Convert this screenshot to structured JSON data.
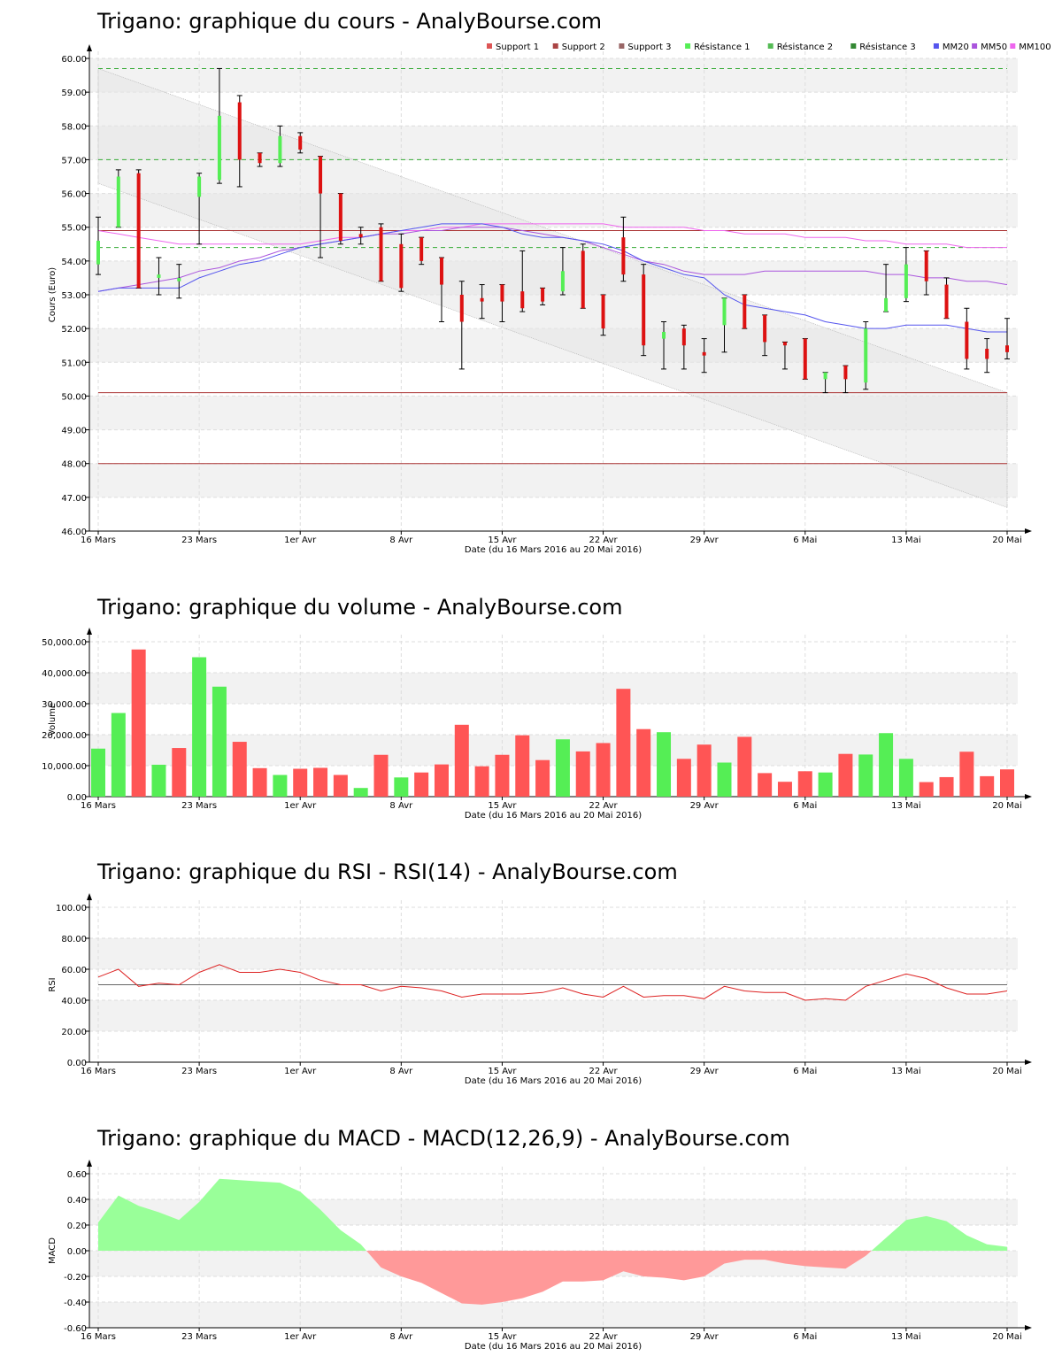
{
  "colors": {
    "bull": "#55ee55",
    "bear": "#dd1111",
    "vol_up": "#55ee55",
    "vol_down": "#ff5555",
    "mm20": "#5555ee",
    "mm50": "#aa55dd",
    "mm100": "#ee66ee",
    "support": "#aa3333",
    "resistance": "#33aa33",
    "rsi": "#dd2222",
    "macd_pos": "#99ff99",
    "macd_neg": "#ff9999",
    "band_fill": "#f2f2f2",
    "channel_fill": "#e6e6e6"
  },
  "x_ticks": [
    "16 Mars",
    "23 Mars",
    "1er Avr",
    "8 Avr",
    "15 Avr",
    "22 Avr",
    "29 Avr",
    "6 Mai",
    "13 Mai",
    "20 Mai"
  ],
  "x_axis_label": "Date (du 16 Mars 2016 au 20 Mai 2016)",
  "chart_data": [
    {
      "type": "candlestick",
      "title": "Trigano: graphique du cours - AnalyBourse.com",
      "ylabel": "Cours (Euro)",
      "xlabel": "Date (du 16 Mars 2016 au 20 Mai 2016)",
      "ylim": [
        46,
        60
      ],
      "y_ticks": [
        "46.00",
        "47.00",
        "48.00",
        "49.00",
        "50.00",
        "51.00",
        "52.00",
        "53.00",
        "54.00",
        "55.00",
        "56.00",
        "57.00",
        "58.00",
        "59.00",
        "60.00"
      ],
      "legend": [
        "Support 1",
        "Support 2",
        "Support 3",
        "Résistance 1",
        "Résistance 2",
        "Résistance 3",
        "MM20",
        "MM50",
        "MM100"
      ],
      "legend_colors": [
        "#dd5555",
        "#aa4444",
        "#996666",
        "#55ee55",
        "#55bb55",
        "#338833",
        "#5555ee",
        "#aa55dd",
        "#ee66ee"
      ],
      "legend_position": "top-right",
      "supports": [
        50.1,
        48.0,
        54.9
      ],
      "resistances": [
        54.4,
        57.0,
        59.7
      ],
      "channel": {
        "start": [
          59.7,
          56.3
        ],
        "end": [
          50.1,
          46.7
        ]
      },
      "candles": [
        {
          "o": 53.9,
          "c": 54.6,
          "h": 55.3,
          "l": 53.6
        },
        {
          "o": 55.0,
          "c": 56.5,
          "h": 56.7,
          "l": 55.0
        },
        {
          "o": 56.6,
          "c": 53.2,
          "h": 56.7,
          "l": 53.2
        },
        {
          "o": 53.5,
          "c": 53.6,
          "h": 54.1,
          "l": 53.0
        },
        {
          "o": 53.4,
          "c": 53.5,
          "h": 53.9,
          "l": 52.9
        },
        {
          "o": 55.9,
          "c": 56.5,
          "h": 56.6,
          "l": 54.5
        },
        {
          "o": 56.4,
          "c": 58.3,
          "h": 59.7,
          "l": 56.3
        },
        {
          "o": 58.7,
          "c": 57.0,
          "h": 58.9,
          "l": 56.2
        },
        {
          "o": 57.2,
          "c": 56.9,
          "h": 57.2,
          "l": 56.8
        },
        {
          "o": 56.9,
          "c": 57.7,
          "h": 58.0,
          "l": 56.8
        },
        {
          "o": 57.7,
          "c": 57.3,
          "h": 57.8,
          "l": 57.2
        },
        {
          "o": 57.1,
          "c": 56.0,
          "h": 57.1,
          "l": 54.1
        },
        {
          "o": 56.0,
          "c": 54.6,
          "h": 56.0,
          "l": 54.5
        },
        {
          "o": 54.8,
          "c": 54.7,
          "h": 55.0,
          "l": 54.5
        },
        {
          "o": 55.0,
          "c": 53.4,
          "h": 55.1,
          "l": 53.4
        },
        {
          "o": 54.5,
          "c": 53.2,
          "h": 54.8,
          "l": 53.1
        },
        {
          "o": 54.7,
          "c": 54.0,
          "h": 54.7,
          "l": 53.9
        },
        {
          "o": 54.1,
          "c": 53.3,
          "h": 54.1,
          "l": 52.2
        },
        {
          "o": 53.0,
          "c": 52.2,
          "h": 53.4,
          "l": 50.8
        },
        {
          "o": 52.9,
          "c": 52.8,
          "h": 53.3,
          "l": 52.3
        },
        {
          "o": 53.3,
          "c": 52.8,
          "h": 53.3,
          "l": 52.2
        },
        {
          "o": 53.1,
          "c": 52.6,
          "h": 54.3,
          "l": 52.5
        },
        {
          "o": 53.2,
          "c": 52.8,
          "h": 53.2,
          "l": 52.7
        },
        {
          "o": 53.1,
          "c": 53.7,
          "h": 54.4,
          "l": 53.0
        },
        {
          "o": 54.3,
          "c": 52.6,
          "h": 54.5,
          "l": 52.6
        },
        {
          "o": 53.0,
          "c": 52.0,
          "h": 53.0,
          "l": 51.8
        },
        {
          "o": 54.7,
          "c": 53.6,
          "h": 55.3,
          "l": 53.4
        },
        {
          "o": 53.6,
          "c": 51.5,
          "h": 53.9,
          "l": 51.2
        },
        {
          "o": 51.7,
          "c": 51.9,
          "h": 52.2,
          "l": 50.8
        },
        {
          "o": 52.0,
          "c": 51.5,
          "h": 52.1,
          "l": 50.8
        },
        {
          "o": 51.3,
          "c": 51.2,
          "h": 51.7,
          "l": 50.7
        },
        {
          "o": 52.1,
          "c": 52.9,
          "h": 52.9,
          "l": 51.3
        },
        {
          "o": 53.0,
          "c": 52.0,
          "h": 53.0,
          "l": 52.0
        },
        {
          "o": 52.4,
          "c": 51.6,
          "h": 52.4,
          "l": 51.2
        },
        {
          "o": 51.6,
          "c": 51.5,
          "h": 51.6,
          "l": 50.8
        },
        {
          "o": 51.7,
          "c": 50.5,
          "h": 51.7,
          "l": 50.5
        },
        {
          "o": 50.5,
          "c": 50.7,
          "h": 50.7,
          "l": 50.1
        },
        {
          "o": 50.9,
          "c": 50.5,
          "h": 50.9,
          "l": 50.1
        },
        {
          "o": 50.4,
          "c": 52.0,
          "h": 52.2,
          "l": 50.2
        },
        {
          "o": 52.5,
          "c": 52.9,
          "h": 53.9,
          "l": 52.5
        },
        {
          "o": 52.9,
          "c": 53.9,
          "h": 54.4,
          "l": 52.8
        },
        {
          "o": 54.3,
          "c": 53.4,
          "h": 54.3,
          "l": 53.0
        },
        {
          "o": 53.3,
          "c": 52.3,
          "h": 53.5,
          "l": 52.3
        },
        {
          "o": 52.2,
          "c": 51.1,
          "h": 52.6,
          "l": 50.8
        },
        {
          "o": 51.4,
          "c": 51.1,
          "h": 51.7,
          "l": 50.7
        },
        {
          "o": 51.5,
          "c": 51.3,
          "h": 52.3,
          "l": 51.1
        }
      ],
      "mm20": [
        53.1,
        53.2,
        53.2,
        53.2,
        53.2,
        53.5,
        53.7,
        53.9,
        54.0,
        54.2,
        54.4,
        54.5,
        54.6,
        54.7,
        54.8,
        54.9,
        55.0,
        55.1,
        55.1,
        55.1,
        55.0,
        54.8,
        54.7,
        54.7,
        54.6,
        54.5,
        54.3,
        54.0,
        53.8,
        53.6,
        53.5,
        53.0,
        52.7,
        52.6,
        52.5,
        52.4,
        52.2,
        52.1,
        52.0,
        52.0,
        52.1,
        52.1,
        52.1,
        52.0,
        51.9,
        51.9
      ],
      "mm50": [
        53.1,
        53.2,
        53.3,
        53.4,
        53.5,
        53.7,
        53.8,
        54.0,
        54.1,
        54.3,
        54.4,
        54.5,
        54.6,
        54.7,
        54.8,
        54.8,
        54.9,
        54.9,
        55.0,
        55.0,
        55.0,
        54.9,
        54.8,
        54.7,
        54.6,
        54.4,
        54.2,
        54.0,
        53.9,
        53.7,
        53.6,
        53.6,
        53.6,
        53.7,
        53.7,
        53.7,
        53.7,
        53.7,
        53.7,
        53.6,
        53.6,
        53.5,
        53.5,
        53.4,
        53.4,
        53.3
      ],
      "mm100": [
        54.9,
        54.8,
        54.7,
        54.6,
        54.5,
        54.5,
        54.5,
        54.5,
        54.5,
        54.5,
        54.5,
        54.6,
        54.7,
        54.7,
        54.8,
        54.9,
        54.9,
        55.0,
        55.0,
        55.1,
        55.1,
        55.1,
        55.1,
        55.1,
        55.1,
        55.1,
        55.0,
        55.0,
        55.0,
        55.0,
        54.9,
        54.9,
        54.8,
        54.8,
        54.8,
        54.7,
        54.7,
        54.7,
        54.6,
        54.6,
        54.5,
        54.5,
        54.5,
        54.4,
        54.4,
        54.4
      ]
    },
    {
      "type": "bar",
      "title": "Trigano: graphique du volume - AnalyBourse.com",
      "ylabel": "Volume",
      "xlabel": "Date (du 16 Mars 2016 au 20 Mai 2016)",
      "ylim": [
        0,
        50000
      ],
      "y_ticks": [
        "0.00",
        "10,000.00",
        "20,000.00",
        "30,000.00",
        "40,000.00",
        "50,000.00"
      ],
      "values": [
        15500,
        27000,
        47500,
        10300,
        15700,
        45000,
        35500,
        17700,
        9200,
        7000,
        9000,
        9300,
        7000,
        2800,
        13500,
        6200,
        7800,
        10400,
        23200,
        9800,
        13500,
        19800,
        11800,
        18500,
        14600,
        17300,
        34800,
        21800,
        20800,
        12200,
        16800,
        11000,
        19300,
        7600,
        4800,
        8200,
        7800,
        13800,
        13600,
        20500,
        12200,
        4700,
        6300,
        14500,
        6600,
        8800
      ],
      "directions": [
        1,
        1,
        0,
        1,
        0,
        1,
        1,
        0,
        0,
        1,
        0,
        0,
        0,
        1,
        0,
        1,
        0,
        0,
        0,
        0,
        0,
        0,
        0,
        1,
        0,
        0,
        0,
        0,
        1,
        0,
        0,
        1,
        0,
        0,
        0,
        0,
        1,
        0,
        1,
        1,
        1,
        0,
        0,
        0,
        0,
        0
      ]
    },
    {
      "type": "line",
      "title": "Trigano: graphique du RSI - RSI(14) - AnalyBourse.com",
      "ylabel": "RSI",
      "xlabel": "Date (du 16 Mars 2016 au 20 Mai 2016)",
      "ylim": [
        0,
        100
      ],
      "y_ticks": [
        "0.00",
        "20.00",
        "40.00",
        "60.00",
        "80.00",
        "100.00"
      ],
      "reference": 50,
      "values": [
        55,
        60,
        49,
        51,
        50,
        58,
        63,
        58,
        58,
        60,
        58,
        53,
        50,
        50,
        46,
        49,
        48,
        46,
        42,
        44,
        44,
        44,
        45,
        48,
        44,
        42,
        49,
        42,
        43,
        43,
        41,
        49,
        46,
        45,
        45,
        40,
        41,
        40,
        49,
        53,
        57,
        54,
        48,
        44,
        44,
        46
      ]
    },
    {
      "type": "area",
      "title": "Trigano: graphique du MACD - MACD(12,26,9) - AnalyBourse.com",
      "ylabel": "MACD",
      "xlabel": "Date (du 16 Mars 2016 au 20 Mai 2016)",
      "ylim": [
        -0.6,
        0.6
      ],
      "y_ticks": [
        "-0.60",
        "-0.40",
        "-0.20",
        "0.00",
        "0.20",
        "0.40",
        "0.60"
      ],
      "values": [
        0.22,
        0.43,
        0.35,
        0.3,
        0.24,
        0.38,
        0.56,
        0.55,
        0.54,
        0.53,
        0.46,
        0.32,
        0.16,
        0.05,
        -0.13,
        -0.2,
        -0.25,
        -0.33,
        -0.41,
        -0.42,
        -0.4,
        -0.37,
        -0.32,
        -0.24,
        -0.24,
        -0.23,
        -0.16,
        -0.2,
        -0.21,
        -0.23,
        -0.2,
        -0.1,
        -0.07,
        -0.07,
        -0.1,
        -0.12,
        -0.13,
        -0.14,
        -0.04,
        0.1,
        0.24,
        0.27,
        0.23,
        0.12,
        0.05,
        0.03
      ]
    }
  ]
}
